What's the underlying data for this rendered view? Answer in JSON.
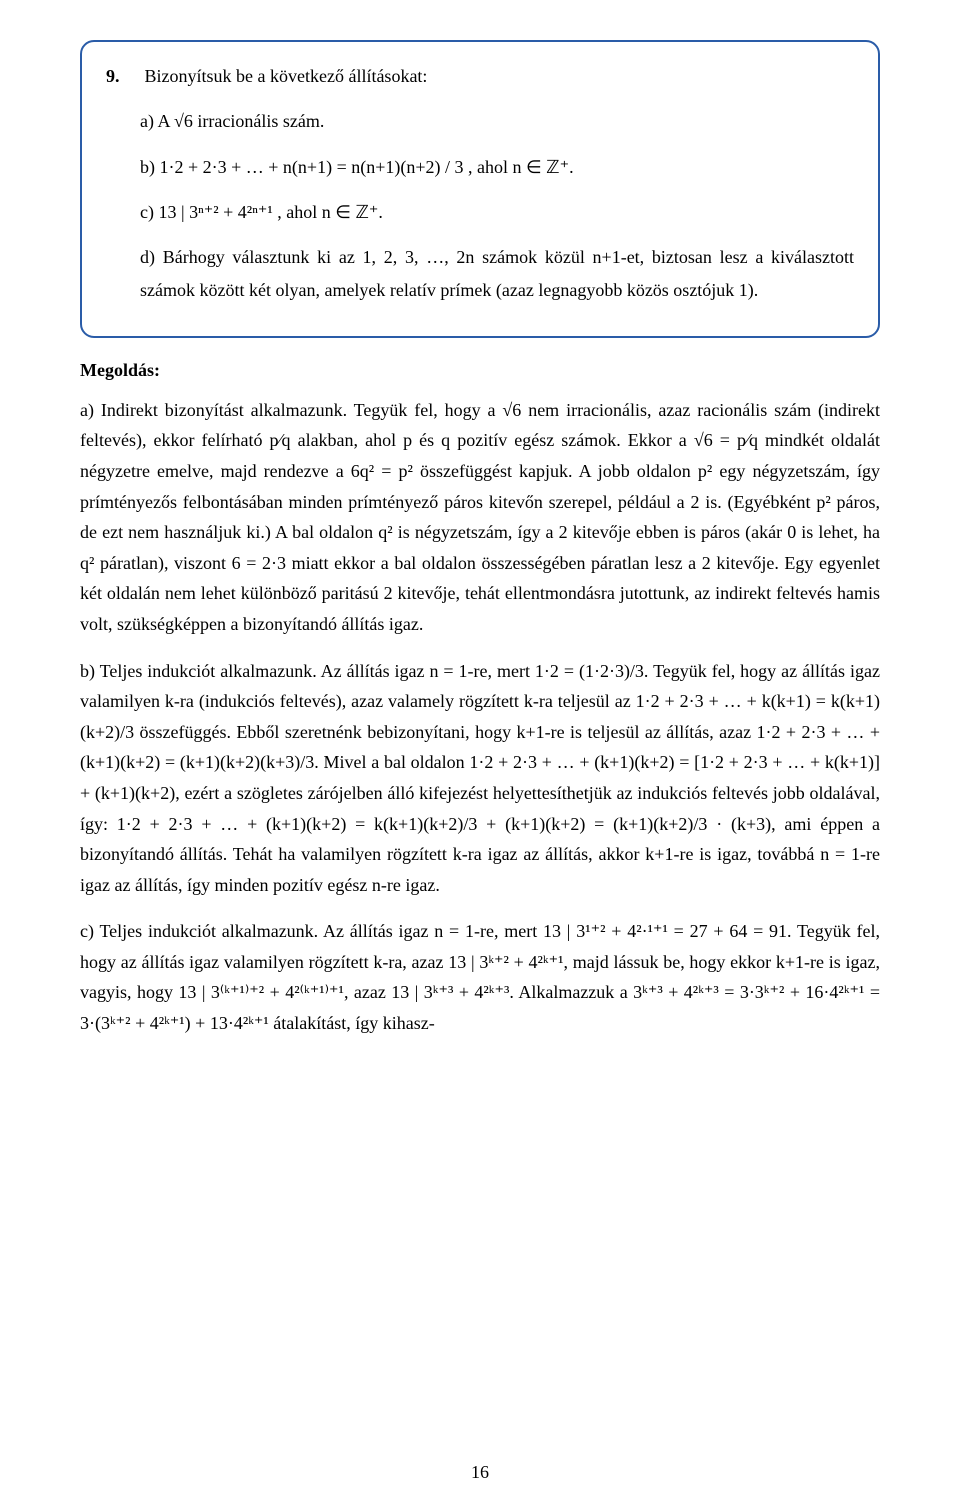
{
  "colors": {
    "text": "#000000",
    "background": "#ffffff",
    "box_border": "#2a5ca8"
  },
  "typography": {
    "base_family": "Times New Roman",
    "base_size_pt": 13,
    "line_height": 1.7
  },
  "problem": {
    "number": "9.",
    "intro": "Bizonyítsuk be a következő állításokat:",
    "items": {
      "a": "a) A √6 irracionális szám.",
      "b": "b) 1·2 + 2·3 + … + n(n+1) = n(n+1)(n+2) / 3 ,  ahol  n ∈ ℤ⁺.",
      "c": "c) 13 | 3ⁿ⁺² + 4²ⁿ⁺¹ ,  ahol  n ∈ ℤ⁺.",
      "d": "d) Bárhogy választunk ki az 1, 2, 3, …, 2n számok közül n+1-et, biztosan lesz a kiválasztott számok között két olyan, amelyek relatív prímek (azaz legnagyobb közös osztójuk 1)."
    }
  },
  "solution": {
    "heading": "Megoldás:",
    "a": "a) Indirekt bizonyítást alkalmazunk. Tegyük fel, hogy a √6 nem irracionális, azaz racionális szám (indirekt feltevés), ekkor felírható p⁄q alakban, ahol p és q pozitív egész számok. Ekkor a √6 = p⁄q mindkét oldalát négyzetre emelve, majd rendezve a 6q² = p² összefüggést kapjuk. A jobb oldalon p² egy négyzetszám, így prímtényezős felbontásában minden prímtényező páros kitevőn szerepel, például a 2 is. (Egyébként p² páros, de ezt nem használjuk ki.) A bal oldalon q² is négyzetszám, így a 2 kitevője ebben is páros (akár 0 is lehet, ha q² páratlan), viszont 6 = 2·3 miatt ekkor a bal oldalon összességében páratlan lesz a 2 kitevője. Egy egyenlet két oldalán nem lehet különböző paritású 2 kitevője, tehát ellentmondásra jutottunk, az indirekt feltevés hamis volt, szükségképpen a bizonyítandó állítás igaz.",
    "b": "b) Teljes indukciót alkalmazunk. Az állítás igaz n = 1-re, mert 1·2 = (1·2·3)/3. Tegyük fel, hogy az állítás igaz valamilyen k-ra (indukciós feltevés), azaz valamely rögzített k-ra teljesül az 1·2 + 2·3 + … + k(k+1) = k(k+1)(k+2)/3 összefüggés. Ebből szeretnénk bebizonyítani, hogy k+1-re is teljesül az állítás, azaz 1·2 + 2·3 + … + (k+1)(k+2) = (k+1)(k+2)(k+3)/3. Mivel a bal oldalon 1·2 + 2·3 + … + (k+1)(k+2) = [1·2 + 2·3 + … + k(k+1)] + (k+1)(k+2), ezért a szögletes zárójelben álló kifejezést helyettesíthetjük az indukciós feltevés jobb oldalával, így: 1·2 + 2·3 + … + (k+1)(k+2) = k(k+1)(k+2)/3 + (k+1)(k+2) = (k+1)(k+2)/3 · (k+3), ami éppen a bizonyítandó állítás. Tehát ha valamilyen rögzített k-ra igaz az állítás, akkor k+1-re is igaz, továbbá n = 1-re igaz az állítás, így minden pozitív egész n-re igaz.",
    "c": "c) Teljes indukciót alkalmazunk. Az állítás igaz n = 1-re, mert 13 | 3¹⁺² + 4²·¹⁺¹ = 27 + 64 = 91. Tegyük fel, hogy az állítás igaz valamilyen rögzített k-ra, azaz 13 | 3ᵏ⁺² + 4²ᵏ⁺¹, majd lássuk be, hogy ekkor k+1-re is igaz, vagyis, hogy 13 | 3⁽ᵏ⁺¹⁾⁺² + 4²⁽ᵏ⁺¹⁾⁺¹, azaz 13 | 3ᵏ⁺³ + 4²ᵏ⁺³. Alkalmazzuk a 3ᵏ⁺³ + 4²ᵏ⁺³ = 3·3ᵏ⁺² + 16·4²ᵏ⁺¹ = 3·(3ᵏ⁺² + 4²ᵏ⁺¹) + 13·4²ᵏ⁺¹ átalakítást, így kihasz-"
  },
  "page_number": "16"
}
